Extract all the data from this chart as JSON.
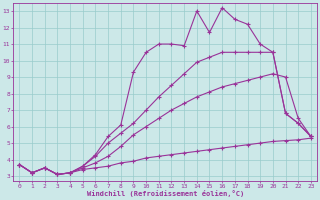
{
  "xlabel": "Windchill (Refroidissement éolien,°C)",
  "background_color": "#cce8e8",
  "grid_color": "#99cccc",
  "line_color": "#993399",
  "xlim": [
    0,
    23
  ],
  "ylim": [
    3,
    13
  ],
  "yticks": [
    3,
    4,
    5,
    6,
    7,
    8,
    9,
    10,
    11,
    12,
    13
  ],
  "xticks": [
    0,
    1,
    2,
    3,
    4,
    5,
    6,
    7,
    8,
    9,
    10,
    11,
    12,
    13,
    14,
    15,
    16,
    17,
    18,
    19,
    20,
    21,
    22,
    23
  ],
  "lines": [
    {
      "x": [
        0,
        1,
        2,
        3,
        4,
        5,
        6,
        7,
        8,
        9,
        10,
        11,
        12,
        13,
        14,
        15,
        16,
        17,
        18,
        19,
        20,
        21,
        22,
        23
      ],
      "y": [
        3.7,
        3.2,
        3.5,
        3.1,
        3.2,
        3.4,
        3.5,
        3.6,
        3.8,
        3.9,
        4.1,
        4.2,
        4.3,
        4.4,
        4.5,
        4.6,
        4.7,
        4.8,
        4.9,
        5.0,
        5.1,
        5.15,
        5.2,
        5.3
      ]
    },
    {
      "x": [
        0,
        1,
        2,
        3,
        4,
        5,
        6,
        7,
        8,
        9,
        10,
        11,
        12,
        13,
        14,
        15,
        16,
        17,
        18,
        19,
        20,
        21,
        22,
        23
      ],
      "y": [
        3.7,
        3.2,
        3.5,
        3.1,
        3.2,
        3.5,
        3.8,
        4.2,
        4.8,
        5.5,
        6.0,
        6.5,
        7.0,
        7.4,
        7.8,
        8.1,
        8.4,
        8.6,
        8.8,
        9.0,
        9.2,
        9.0,
        6.5,
        5.4
      ]
    },
    {
      "x": [
        0,
        1,
        2,
        3,
        4,
        5,
        6,
        7,
        8,
        9,
        10,
        11,
        12,
        13,
        14,
        15,
        16,
        17,
        18,
        19,
        20,
        21,
        22,
        23
      ],
      "y": [
        3.7,
        3.2,
        3.5,
        3.1,
        3.2,
        3.6,
        4.2,
        5.0,
        5.6,
        6.2,
        7.0,
        7.8,
        8.5,
        9.2,
        9.9,
        10.2,
        10.5,
        10.5,
        10.5,
        10.5,
        10.5,
        6.8,
        6.2,
        5.4
      ]
    },
    {
      "x": [
        0,
        1,
        2,
        3,
        4,
        5,
        6,
        7,
        8,
        9,
        10,
        11,
        12,
        13,
        14,
        15,
        16,
        17,
        18,
        19,
        20,
        21,
        22,
        23
      ],
      "y": [
        3.7,
        3.2,
        3.5,
        3.1,
        3.2,
        3.6,
        4.3,
        5.4,
        6.1,
        9.3,
        10.5,
        11.0,
        11.0,
        10.9,
        13.0,
        11.7,
        13.2,
        12.5,
        12.2,
        11.0,
        10.5,
        6.8,
        6.2,
        5.4
      ]
    }
  ]
}
